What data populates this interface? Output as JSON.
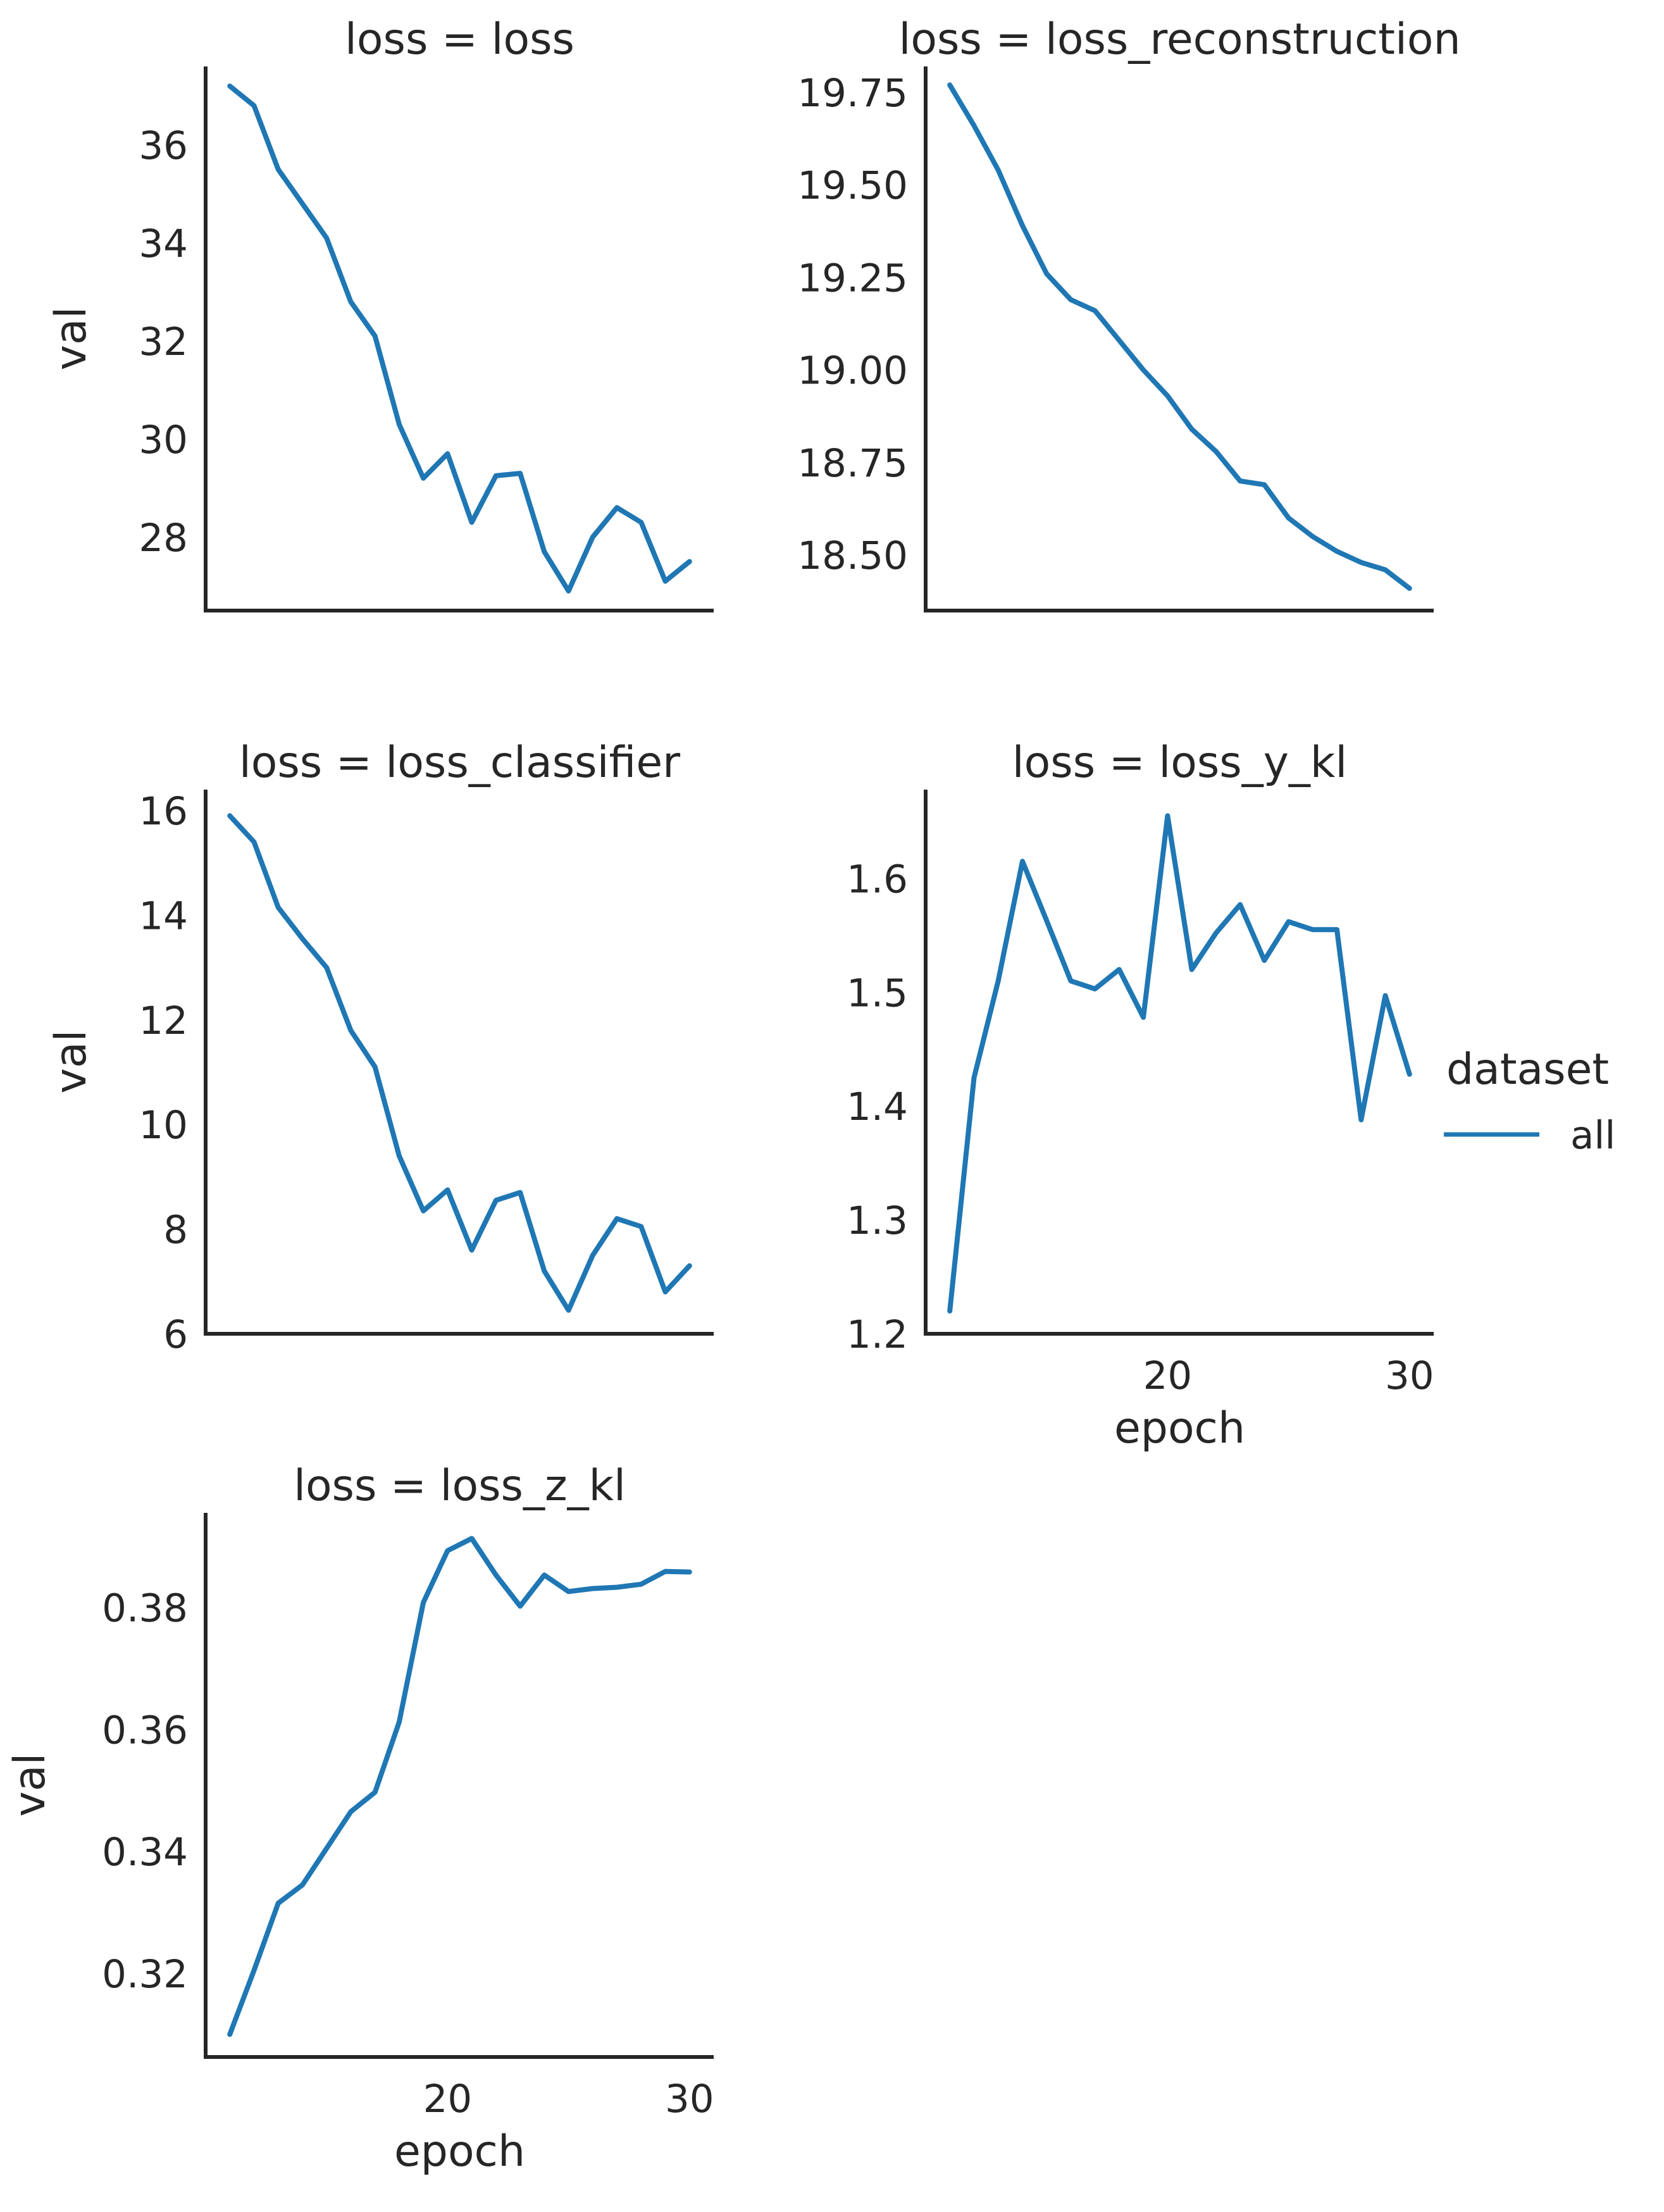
{
  "legend": {
    "title": "dataset",
    "entries": [
      {
        "label": "all",
        "color": "#1f77b4"
      }
    ]
  },
  "colors": {
    "line": "#1f77b4",
    "axis": "#262626"
  },
  "chart_data": [
    {
      "type": "line",
      "title": "loss = loss",
      "xlabel": "",
      "ylabel": "val",
      "xlim": [
        10,
        31
      ],
      "ylim": [
        26.5,
        37.6
      ],
      "yticks": [
        28,
        30,
        32,
        34,
        36
      ],
      "ytick_labels": [
        "28",
        "30",
        "32",
        "34",
        "36"
      ],
      "xticks": [],
      "xtick_labels": [],
      "series": [
        {
          "name": "all",
          "x": [
            11,
            12,
            13,
            14,
            15,
            16,
            17,
            18,
            19,
            20,
            21,
            22,
            23,
            24,
            25,
            26,
            27,
            28,
            29,
            30
          ],
          "values": [
            37.2,
            36.8,
            35.5,
            34.8,
            34.1,
            32.8,
            32.1,
            30.3,
            29.2,
            29.7,
            28.3,
            29.25,
            29.3,
            27.7,
            26.9,
            28.0,
            28.6,
            28.3,
            27.1,
            27.5
          ]
        }
      ]
    },
    {
      "type": "line",
      "title": "loss = loss_reconstruction",
      "xlabel": "",
      "ylabel": "",
      "xlim": [
        10,
        31
      ],
      "ylim": [
        18.35,
        19.82
      ],
      "yticks": [
        18.5,
        18.75,
        19.0,
        19.25,
        19.5,
        19.75
      ],
      "ytick_labels": [
        "18.50",
        "18.75",
        "19.00",
        "19.25",
        "19.50",
        "19.75"
      ],
      "xticks": [],
      "xtick_labels": [],
      "series": [
        {
          "name": "all",
          "x": [
            11,
            12,
            13,
            14,
            15,
            16,
            17,
            18,
            19,
            20,
            21,
            22,
            23,
            24,
            25,
            26,
            27,
            28,
            29,
            30
          ],
          "values": [
            19.77,
            19.66,
            19.54,
            19.39,
            19.26,
            19.19,
            19.16,
            19.08,
            19.0,
            18.93,
            18.84,
            18.78,
            18.7,
            18.69,
            18.6,
            18.55,
            18.51,
            18.48,
            18.46,
            18.41
          ]
        }
      ]
    },
    {
      "type": "line",
      "title": "loss = loss_classifier",
      "xlabel": "",
      "ylabel": "val",
      "xlim": [
        10,
        31
      ],
      "ylim": [
        6.0,
        16.4
      ],
      "yticks": [
        6,
        8,
        10,
        12,
        14,
        16
      ],
      "ytick_labels": [
        "6",
        "8",
        "10",
        "12",
        "14",
        "16"
      ],
      "xticks": [],
      "xtick_labels": [],
      "series": [
        {
          "name": "all",
          "x": [
            11,
            12,
            13,
            14,
            15,
            16,
            17,
            18,
            19,
            20,
            21,
            22,
            23,
            24,
            25,
            26,
            27,
            28,
            29,
            30
          ],
          "values": [
            15.9,
            15.4,
            14.15,
            13.55,
            13.0,
            11.8,
            11.1,
            9.4,
            8.35,
            8.75,
            7.6,
            8.55,
            8.7,
            7.2,
            6.45,
            7.5,
            8.2,
            8.05,
            6.8,
            7.3
          ]
        }
      ]
    },
    {
      "type": "line",
      "title": "loss = loss_y_kl",
      "xlabel": "epoch",
      "ylabel": "",
      "xlim": [
        10,
        31
      ],
      "ylim": [
        1.2,
        1.678
      ],
      "yticks": [
        1.2,
        1.3,
        1.4,
        1.5,
        1.6
      ],
      "ytick_labels": [
        "1.2",
        "1.3",
        "1.4",
        "1.5",
        "1.6"
      ],
      "xticks": [
        20,
        30
      ],
      "xtick_labels": [
        "20",
        "30"
      ],
      "series": [
        {
          "name": "all",
          "x": [
            11,
            12,
            13,
            14,
            15,
            16,
            17,
            18,
            19,
            20,
            21,
            22,
            23,
            24,
            25,
            26,
            27,
            28,
            29,
            30
          ],
          "values": [
            1.22,
            1.425,
            1.51,
            1.615,
            1.563,
            1.51,
            1.503,
            1.52,
            1.478,
            1.655,
            1.52,
            1.552,
            1.577,
            1.528,
            1.562,
            1.555,
            1.555,
            1.388,
            1.497,
            1.428
          ]
        }
      ]
    },
    {
      "type": "line",
      "title": "loss = loss_z_kl",
      "xlabel": "epoch",
      "ylabel": "val",
      "xlim": [
        10,
        31
      ],
      "ylim": [
        0.3063,
        0.3955
      ],
      "yticks": [
        0.32,
        0.34,
        0.36,
        0.38
      ],
      "ytick_labels": [
        "0.32",
        "0.34",
        "0.36",
        "0.38"
      ],
      "xticks": [
        20,
        30
      ],
      "xtick_labels": [
        "20",
        "30"
      ],
      "series": [
        {
          "name": "all",
          "x": [
            11,
            12,
            13,
            14,
            15,
            16,
            17,
            18,
            19,
            20,
            21,
            22,
            23,
            24,
            25,
            26,
            27,
            28,
            29,
            30
          ],
          "values": [
            0.31,
            0.3205,
            0.3315,
            0.3345,
            0.3405,
            0.3465,
            0.3497,
            0.3612,
            0.3808,
            0.3893,
            0.3913,
            0.3853,
            0.3802,
            0.3853,
            0.3826,
            0.3831,
            0.3833,
            0.3838,
            0.3859,
            0.3858
          ]
        }
      ]
    }
  ]
}
